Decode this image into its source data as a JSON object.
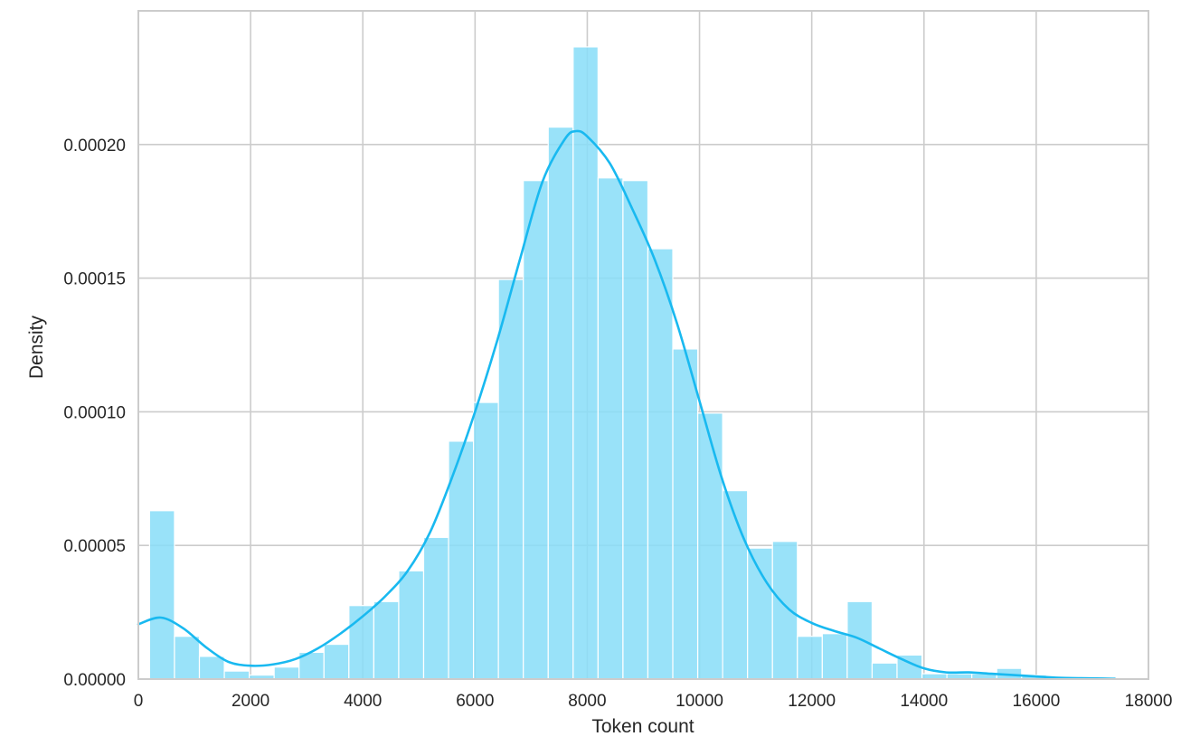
{
  "chart_data": {
    "type": "bar",
    "subtype": "histogram-with-kde",
    "title": "",
    "xlabel": "Token count",
    "ylabel": "Density",
    "xlim": [
      0,
      18000
    ],
    "ylim": [
      0,
      0.00025
    ],
    "grid": true,
    "legend": "none",
    "x_ticks": [
      0,
      2000,
      4000,
      6000,
      8000,
      10000,
      12000,
      14000,
      16000,
      18000
    ],
    "x_tick_labels": [
      "0",
      "2000",
      "4000",
      "6000",
      "8000",
      "10000",
      "12000",
      "14000",
      "16000",
      "18000"
    ],
    "y_ticks": [
      0,
      5e-05,
      0.0001,
      0.00015,
      0.0002
    ],
    "y_tick_labels": [
      "0.00000",
      "0.00005",
      "0.00010",
      "0.00015",
      "0.00020"
    ],
    "colors": {
      "bar_fill": "#87ddf8",
      "bar_edge": "#ffffff",
      "kde_line": "#19b9f0",
      "grid": "#cccccc",
      "text": "#262626"
    },
    "bins": {
      "start": 200,
      "width": 444,
      "densities": [
        6.3e-05,
        1.6e-05,
        8.5e-06,
        3e-06,
        1.5e-06,
        4.5e-06,
        1e-05,
        1.3e-05,
        2.75e-05,
        2.9e-05,
        4.05e-05,
        5.3e-05,
        8.9e-05,
        0.0001035,
        0.0001495,
        0.0001865,
        0.0002065,
        0.0002365,
        0.0001875,
        0.0001865,
        0.000161,
        0.0001235,
        9.95e-05,
        7.05e-05,
        4.9e-05,
        5.15e-05,
        1.6e-05,
        1.7e-05,
        2.9e-05,
        6e-06,
        9e-06,
        2e-06,
        2e-06,
        2e-06,
        4e-06,
        1.5e-06,
        5e-07,
        5e-07
      ]
    },
    "kde": {
      "x": [
        0,
        400,
        800,
        1200,
        1600,
        2000,
        2400,
        2800,
        3200,
        3600,
        4000,
        4400,
        4800,
        5200,
        5600,
        6000,
        6400,
        6800,
        7200,
        7600,
        7800,
        8000,
        8400,
        8800,
        9200,
        9600,
        10000,
        10400,
        10800,
        11200,
        11600,
        12000,
        12400,
        12800,
        13200,
        13600,
        14000,
        14400,
        14800,
        15200,
        15600,
        16000,
        16400,
        16800,
        17200,
        17400
      ],
      "y": [
        2.05e-05,
        2.3e-05,
        1.9e-05,
        1.2e-05,
        6.5e-06,
        5e-06,
        5.5e-06,
        7.5e-06,
        1.15e-05,
        1.7e-05,
        2.35e-05,
        3.1e-05,
        4.05e-05,
        5.5e-05,
        7.6e-05,
        0.0001,
        0.000127,
        0.000157,
        0.000186,
        0.000202,
        0.000205,
        0.000203,
        0.000193,
        0.000176,
        0.000157,
        0.000133,
        0.000104,
        7.5e-05,
        5.2e-05,
        3.6e-05,
        2.6e-05,
        2.1e-05,
        1.8e-05,
        1.55e-05,
        1.15e-05,
        7.5e-06,
        4e-06,
        2.5e-06,
        2.5e-06,
        2e-06,
        1.5e-06,
        1e-06,
        5e-07,
        3e-07,
        2e-07,
        1e-07
      ]
    }
  }
}
